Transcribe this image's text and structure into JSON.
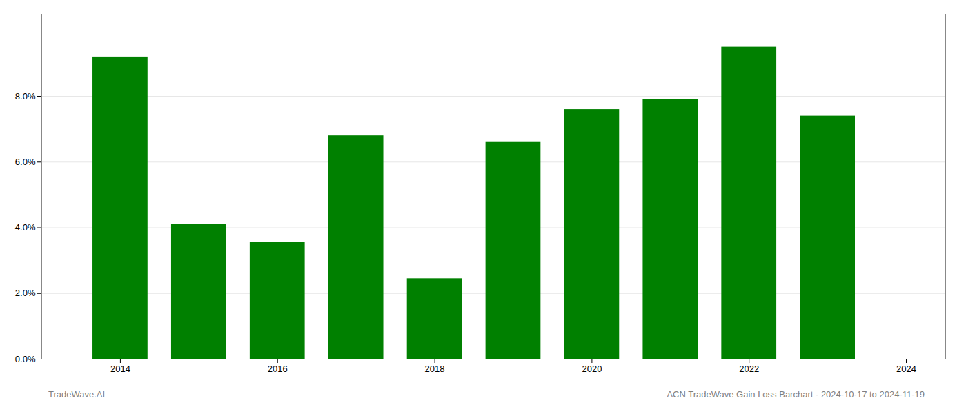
{
  "chart_data": {
    "type": "bar",
    "x": [
      2014,
      2015,
      2016,
      2017,
      2018,
      2019,
      2020,
      2021,
      2022,
      2023
    ],
    "values": [
      0.092,
      0.041,
      0.0355,
      0.068,
      0.0245,
      0.066,
      0.076,
      0.079,
      0.095,
      0.074
    ],
    "color": "#008000",
    "xlim": [
      2013.0,
      2024.5
    ],
    "xticks": [
      2014,
      2016,
      2018,
      2020,
      2022,
      2024
    ],
    "ylim": [
      0,
      0.105
    ],
    "yticks": [
      {
        "value": 0.0,
        "label": "0.0%"
      },
      {
        "value": 0.02,
        "label": "2.0%"
      },
      {
        "value": 0.04,
        "label": "4.0%"
      },
      {
        "value": 0.06,
        "label": "6.0%"
      },
      {
        "value": 0.08,
        "label": "8.0%"
      }
    ],
    "grid": true,
    "annotations": [
      "TradeWave.AI",
      "ACN TradeWave Gain Loss Barchart - 2024-10-17 to 2024-11-19"
    ]
  }
}
